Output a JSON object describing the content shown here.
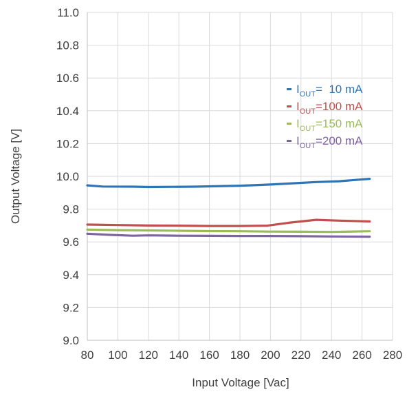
{
  "chart_data": {
    "type": "line",
    "xlabel": "Input Voltage [Vac]",
    "ylabel": "Output Voltage [V]",
    "xlim": [
      80,
      280
    ],
    "ylim": [
      9.0,
      11.0
    ],
    "x_ticks": [
      "80",
      "100",
      "120",
      "140",
      "160",
      "180",
      "200",
      "220",
      "240",
      "260",
      "280"
    ],
    "y_ticks": [
      "9.0",
      "9.2",
      "9.4",
      "9.6",
      "9.8",
      "10.0",
      "10.2",
      "10.4",
      "10.6",
      "10.8",
      "11.0"
    ],
    "grid": true,
    "legend_position": "top-right inside",
    "series": [
      {
        "name": "IOUT= 10 mA",
        "legend_main": "I",
        "legend_sub": "OUT",
        "legend_rest": "=  10 mA",
        "color": "#2e75b6",
        "x": [
          80,
          90,
          110,
          120,
          150,
          180,
          200,
          220,
          230,
          245,
          265
        ],
        "y": [
          9.945,
          9.938,
          9.937,
          9.935,
          9.937,
          9.943,
          9.95,
          9.96,
          9.965,
          9.97,
          9.985
        ]
      },
      {
        "name": "IOUT=100 mA",
        "legend_main": "I",
        "legend_sub": "OUT",
        "legend_rest": "=100 mA",
        "color": "#c0504d",
        "x": [
          80,
          100,
          120,
          140,
          160,
          180,
          198,
          212,
          230,
          245,
          265
        ],
        "y": [
          9.706,
          9.703,
          9.7,
          9.699,
          9.697,
          9.697,
          9.699,
          9.717,
          9.735,
          9.73,
          9.725
        ]
      },
      {
        "name": "IOUT=150 mA",
        "legend_main": "I",
        "legend_sub": "OUT",
        "legend_rest": "=150 mA",
        "color": "#9bbb59",
        "x": [
          80,
          100,
          120,
          140,
          160,
          180,
          200,
          220,
          240,
          265
        ],
        "y": [
          9.675,
          9.672,
          9.67,
          9.668,
          9.666,
          9.665,
          9.663,
          9.662,
          9.661,
          9.665
        ]
      },
      {
        "name": "IOUT=200 mA",
        "legend_main": "I",
        "legend_sub": "OUT",
        "legend_rest": "=200 mA",
        "color": "#8064a2",
        "x": [
          80,
          95,
          110,
          120,
          140,
          160,
          180,
          200,
          220,
          240,
          265
        ],
        "y": [
          9.65,
          9.643,
          9.638,
          9.64,
          9.638,
          9.637,
          9.636,
          9.636,
          9.635,
          9.633,
          9.632
        ]
      }
    ]
  }
}
